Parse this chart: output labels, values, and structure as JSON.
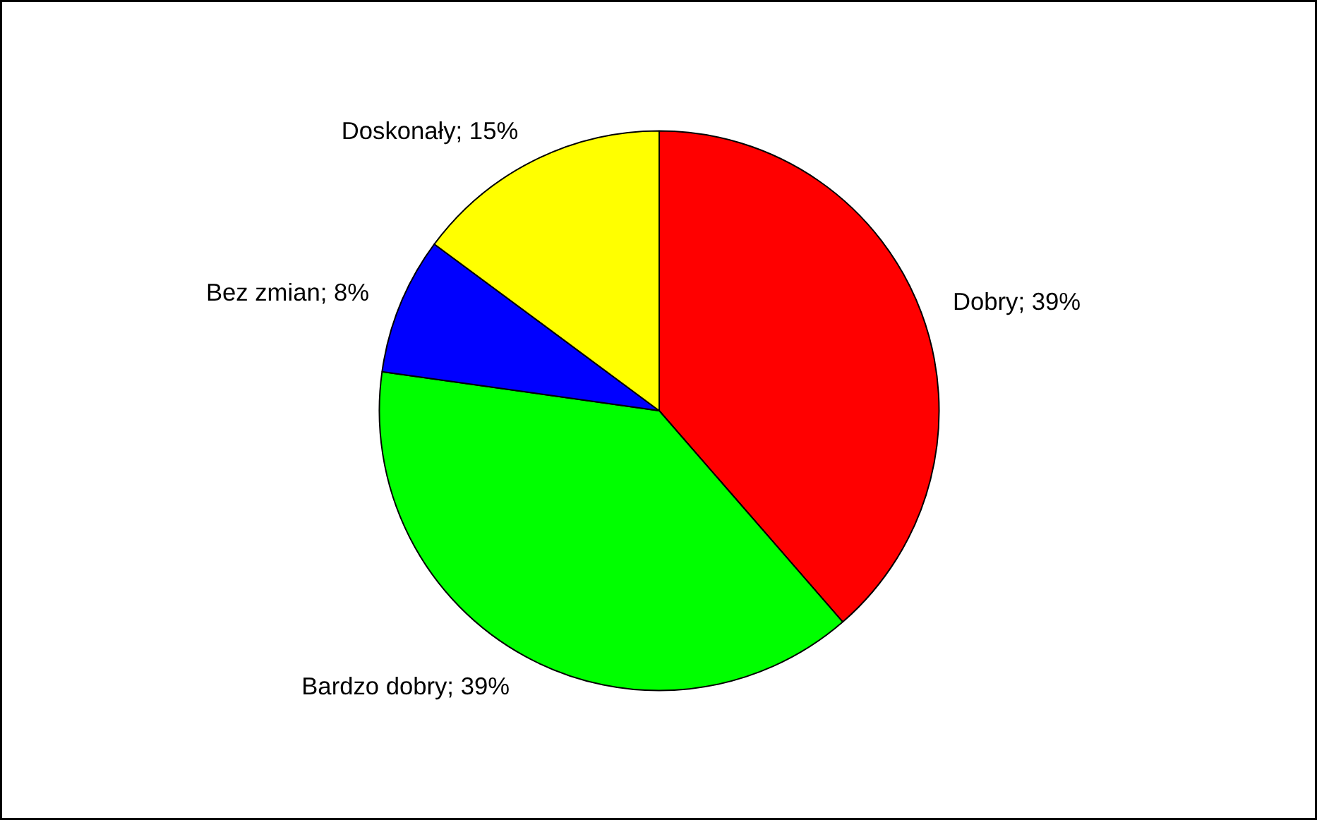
{
  "chart_data": {
    "type": "pie",
    "categories": [
      "Dobry; 39%",
      "Bardzo dobry; 39%",
      "Bez zmian; 8%",
      "Doskonały; 15%"
    ],
    "values": [
      39,
      39,
      8,
      15
    ],
    "colors": [
      "#ff0000",
      "#00ff00",
      "#0000ff",
      "#ffff00"
    ]
  }
}
